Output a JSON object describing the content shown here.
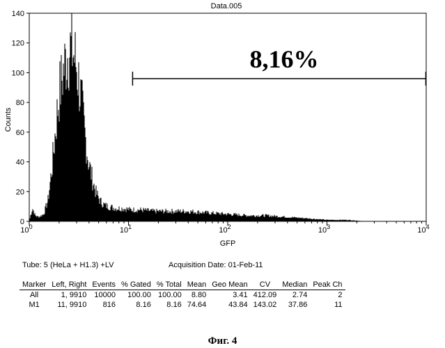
{
  "chart_data": {
    "type": "histogram",
    "title": "Data.005",
    "xlabel": "GFP",
    "ylabel": "Counts",
    "x_scale": "log",
    "xlim": [
      1,
      10000
    ],
    "ylim": [
      0,
      140
    ],
    "x_ticks": [
      "10",
      "10",
      "10",
      "10",
      "10"
    ],
    "x_tick_exponents": [
      "0",
      "1",
      "2",
      "3",
      "4"
    ],
    "y_ticks": [
      "0",
      "20",
      "40",
      "60",
      "80",
      "100",
      "120",
      "140"
    ],
    "profile": [
      [
        1.0,
        0
      ],
      [
        1.04,
        5
      ],
      [
        1.08,
        9
      ],
      [
        1.15,
        4
      ],
      [
        1.25,
        3
      ],
      [
        1.4,
        5
      ],
      [
        1.55,
        15
      ],
      [
        1.7,
        38
      ],
      [
        1.85,
        65
      ],
      [
        2.0,
        88
      ],
      [
        2.15,
        100
      ],
      [
        2.3,
        110
      ],
      [
        2.45,
        117
      ],
      [
        2.6,
        120
      ],
      [
        2.75,
        118
      ],
      [
        2.95,
        110
      ],
      [
        3.15,
        98
      ],
      [
        3.4,
        80
      ],
      [
        3.65,
        60
      ],
      [
        3.95,
        42
      ],
      [
        4.3,
        30
      ],
      [
        4.7,
        20
      ],
      [
        5.2,
        14
      ],
      [
        5.8,
        11
      ],
      [
        6.5,
        10
      ],
      [
        7.5,
        9
      ],
      [
        8.8,
        9
      ],
      [
        10.5,
        8
      ],
      [
        13.0,
        8
      ],
      [
        18.0,
        7
      ],
      [
        25.0,
        7
      ],
      [
        40.0,
        7
      ],
      [
        60.0,
        6
      ],
      [
        100.0,
        5
      ],
      [
        160.0,
        4
      ],
      [
        250.0,
        4
      ],
      [
        400.0,
        3
      ],
      [
        650.0,
        2
      ],
      [
        1000.0,
        1
      ],
      [
        1600.0,
        1
      ],
      [
        2500.0,
        0
      ],
      [
        10000.0,
        0
      ]
    ],
    "marker": {
      "name": "M1",
      "range": [
        11,
        9910
      ],
      "y": 96,
      "label": "8,16%"
    }
  },
  "tube_label": "Tube: 5 (HeLa + H1.3) +LV",
  "acquisition_label": "Acquisition Date: 01-Feb-11",
  "stats": {
    "headers": [
      "Marker",
      "Left, Right",
      "Events",
      "% Gated",
      "% Total",
      "Mean",
      "Geo Mean",
      "CV",
      "Median",
      "Peak Ch"
    ],
    "rows": [
      [
        "All",
        "1, 9910",
        "10000",
        "100.00",
        "100.00",
        "8.80",
        "3.41",
        "412.09",
        "2.74",
        "2"
      ],
      [
        "M1",
        "11, 9910",
        "816",
        "8.16",
        "8.16",
        "74.64",
        "43.84",
        "143.02",
        "37.86",
        "11"
      ]
    ]
  },
  "figure_caption": "Фиг. 4"
}
